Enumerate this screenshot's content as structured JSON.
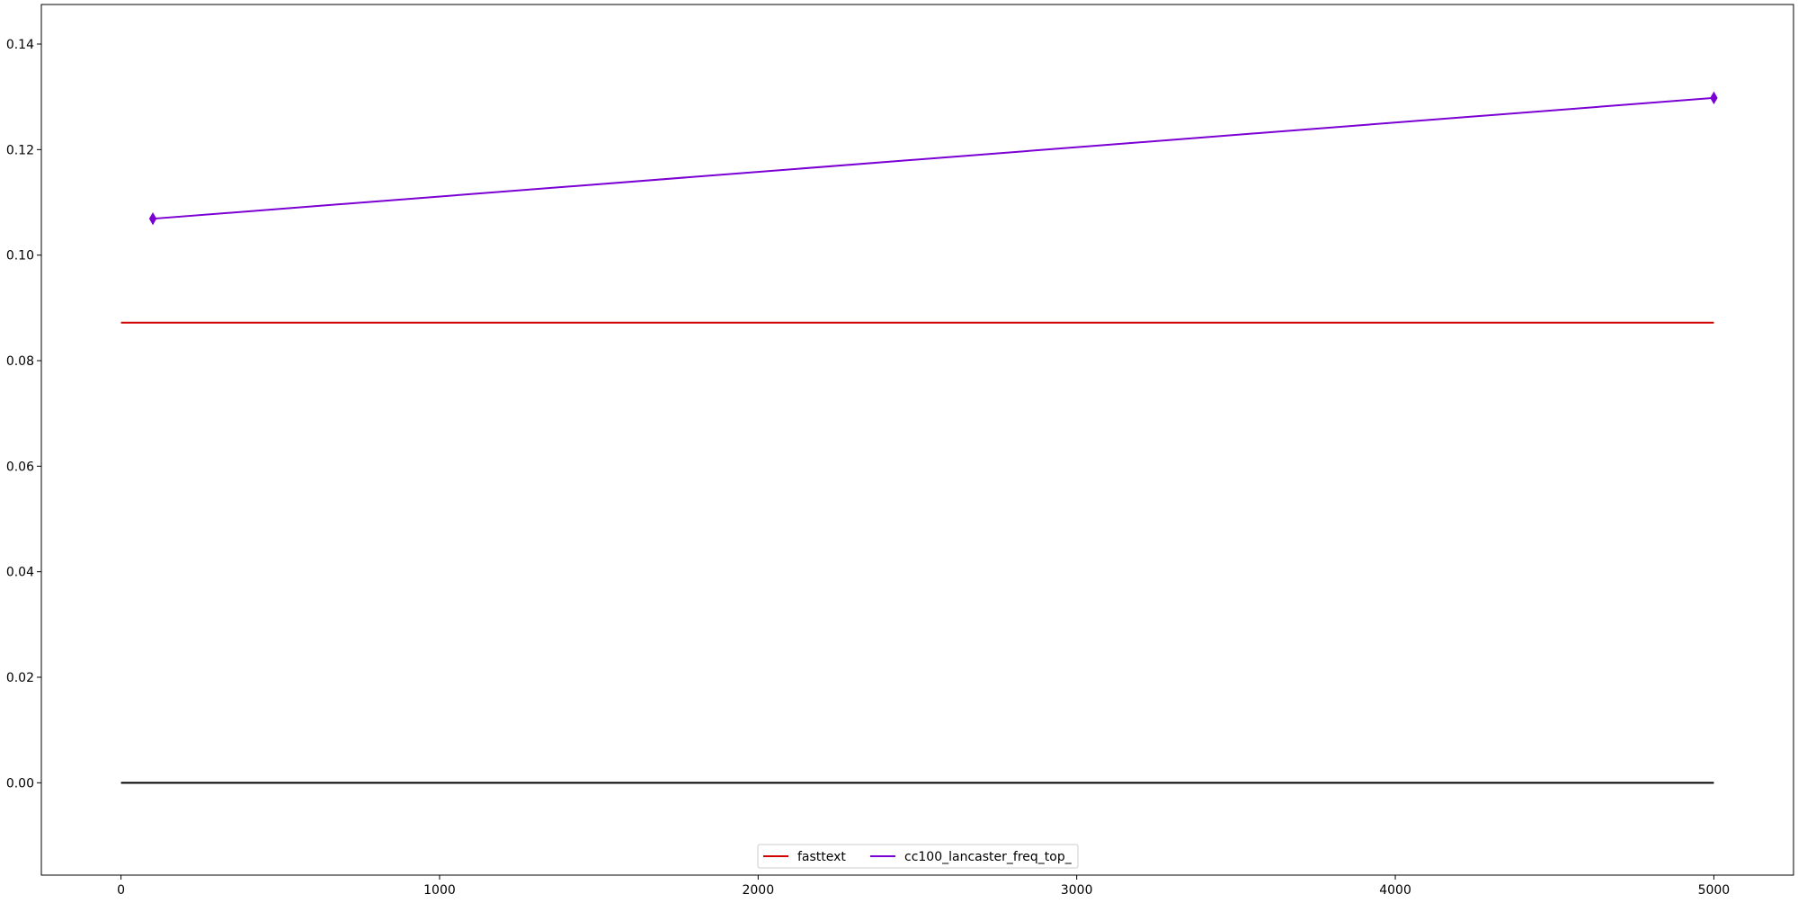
{
  "chart_data": {
    "type": "line",
    "title": "",
    "xlabel": "",
    "ylabel": "",
    "xlim": [
      -250,
      5250
    ],
    "ylim": [
      -0.0175,
      0.1475
    ],
    "xticks": [
      0,
      1000,
      2000,
      3000,
      4000,
      5000
    ],
    "xtick_labels": [
      "0",
      "1000",
      "2000",
      "3000",
      "4000",
      "5000"
    ],
    "yticks": [
      0.0,
      0.02,
      0.04,
      0.06,
      0.08,
      0.1,
      0.12,
      0.14
    ],
    "ytick_labels": [
      "0.00",
      "0.02",
      "0.04",
      "0.06",
      "0.08",
      "0.10",
      "0.12",
      "0.14"
    ],
    "grid": false,
    "legend_position": "bottom-center",
    "series": [
      {
        "name": "fasttext",
        "color": "#d40000",
        "marker": "none",
        "x": [
          0,
          5000
        ],
        "y": [
          0.0872,
          0.0872
        ],
        "in_legend": true
      },
      {
        "name": "cc100_lancaster_freq_top_",
        "color": "#7b00d4",
        "marker": "diamond",
        "x": [
          100,
          5000
        ],
        "y": [
          0.1069,
          0.1298
        ],
        "in_legend": true
      },
      {
        "name": "",
        "color": "#000000",
        "marker": "none",
        "x": [
          0,
          5000
        ],
        "y": [
          0.0,
          0.0
        ],
        "in_legend": false
      }
    ]
  }
}
